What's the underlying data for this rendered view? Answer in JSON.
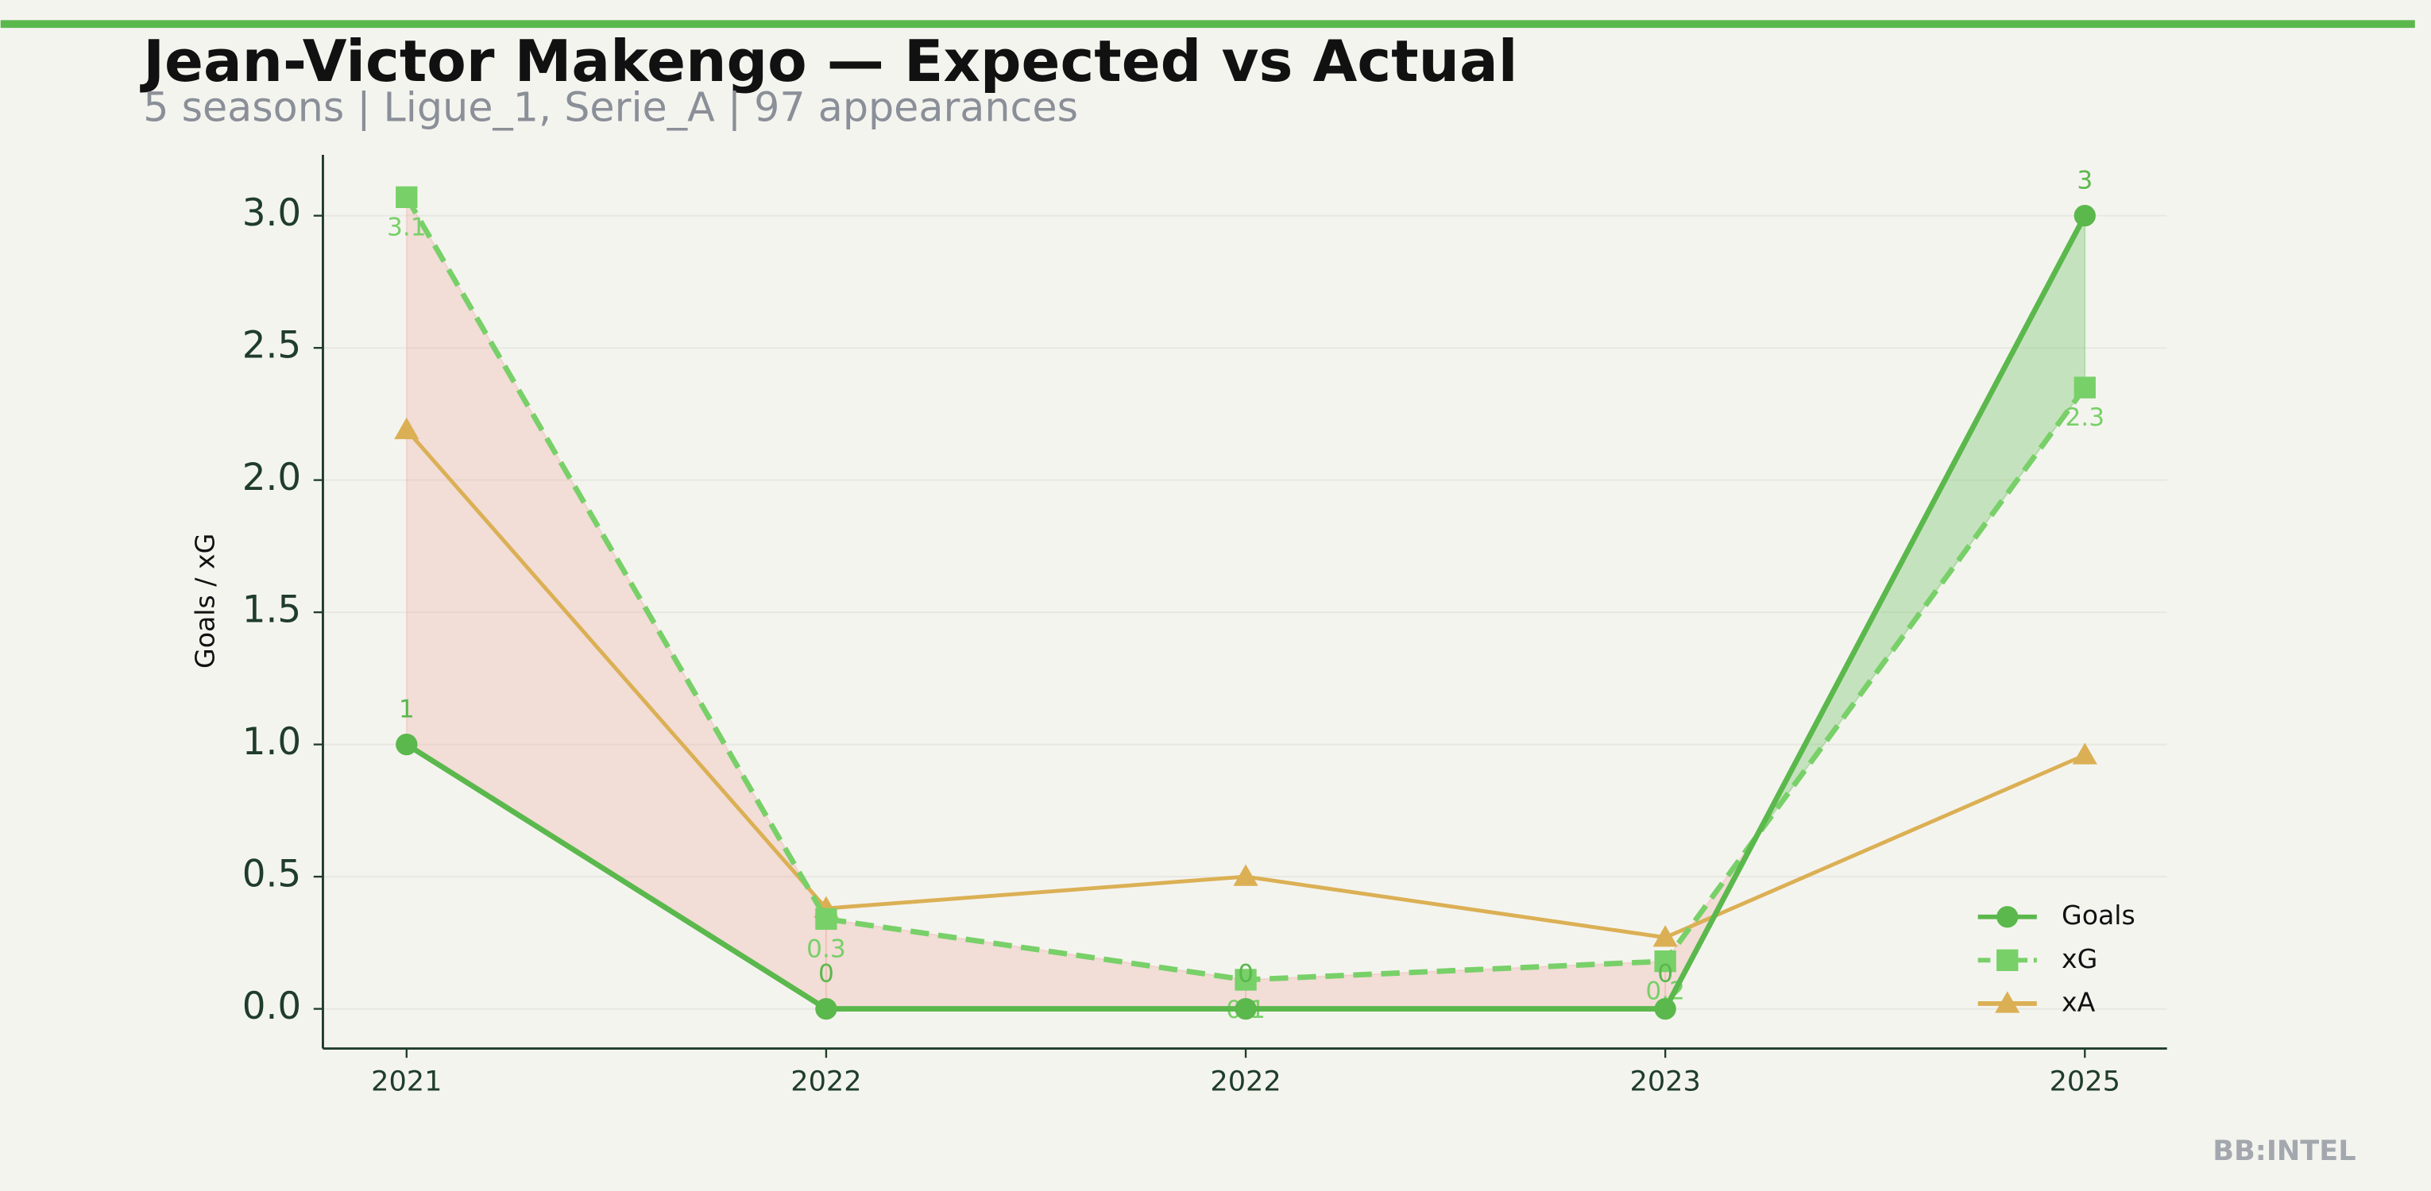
{
  "chart_data": {
    "type": "line",
    "title": "Jean-Victor Makengo — Expected vs Actual",
    "subtitle": "5 seasons | Ligue_1, Serie_A | 97 appearances",
    "y_label": "Goals / xG",
    "footer": "BB:INTEL",
    "categories": [
      "2021",
      "2022",
      "2022",
      "2023",
      "2025"
    ],
    "series": [
      {
        "name": "Goals",
        "color": "#5bb84c",
        "marker": "circle",
        "dash": false,
        "values": [
          1,
          0,
          0,
          0,
          3
        ],
        "value_labels": [
          "1",
          "0",
          "0",
          "0",
          "3"
        ]
      },
      {
        "name": "xG",
        "color": "#78d068",
        "marker": "square",
        "dash": true,
        "values": [
          3.07,
          0.34,
          0.11,
          0.18,
          2.35
        ],
        "value_labels": [
          "3.1",
          "0.3",
          "0.1",
          "0.2",
          "2.3"
        ]
      },
      {
        "name": "xA",
        "color": "#dbb054",
        "marker": "triangle",
        "dash": false,
        "values": [
          2.19,
          0.38,
          0.5,
          0.27,
          0.96
        ]
      }
    ],
    "fill_between": {
      "below_expected_color": "#f0a8a0",
      "above_expected_color": "#5bb84c"
    },
    "ylim": [
      -0.15,
      3.23
    ],
    "yticks": [
      {
        "value": 0,
        "label": "0.0"
      },
      {
        "value": 0.5,
        "label": "0.5"
      },
      {
        "value": 1,
        "label": "1.0"
      },
      {
        "value": 1.5,
        "label": "1.5"
      },
      {
        "value": 2,
        "label": "2.0"
      },
      {
        "value": 2.5,
        "label": "2.5"
      },
      {
        "value": 3,
        "label": "3.0"
      }
    ],
    "grid": true,
    "legend": "lower right"
  }
}
